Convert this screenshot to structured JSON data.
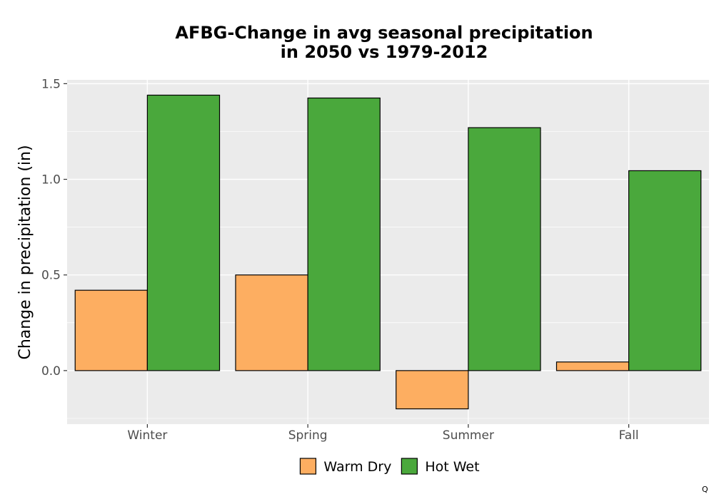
{
  "chart_data": {
    "type": "bar",
    "title": [
      "AFBG-Change in avg seasonal precipitation",
      "in 2050 vs 1979-2012"
    ],
    "xlabel": "",
    "ylabel": "Change in precipitation (in)",
    "categories": [
      "Winter",
      "Spring",
      "Summer",
      "Fall"
    ],
    "series": [
      {
        "name": "Warm Dry",
        "color": "#fdae61",
        "values": [
          0.42,
          0.5,
          -0.2,
          0.045
        ]
      },
      {
        "name": "Hot Wet",
        "color": "#4aa83c",
        "values": [
          1.44,
          1.425,
          1.27,
          1.045
        ]
      }
    ],
    "ylim": [
      -0.28,
      1.52
    ],
    "yticks": [
      0.0,
      0.5,
      1.0,
      1.5
    ],
    "ytick_labels": [
      "0.0",
      "0.5",
      "1.0",
      "1.5"
    ],
    "grid": true,
    "legend_position": "bottom",
    "panel_background": "#ebebeb"
  },
  "corner_mark": "Q"
}
